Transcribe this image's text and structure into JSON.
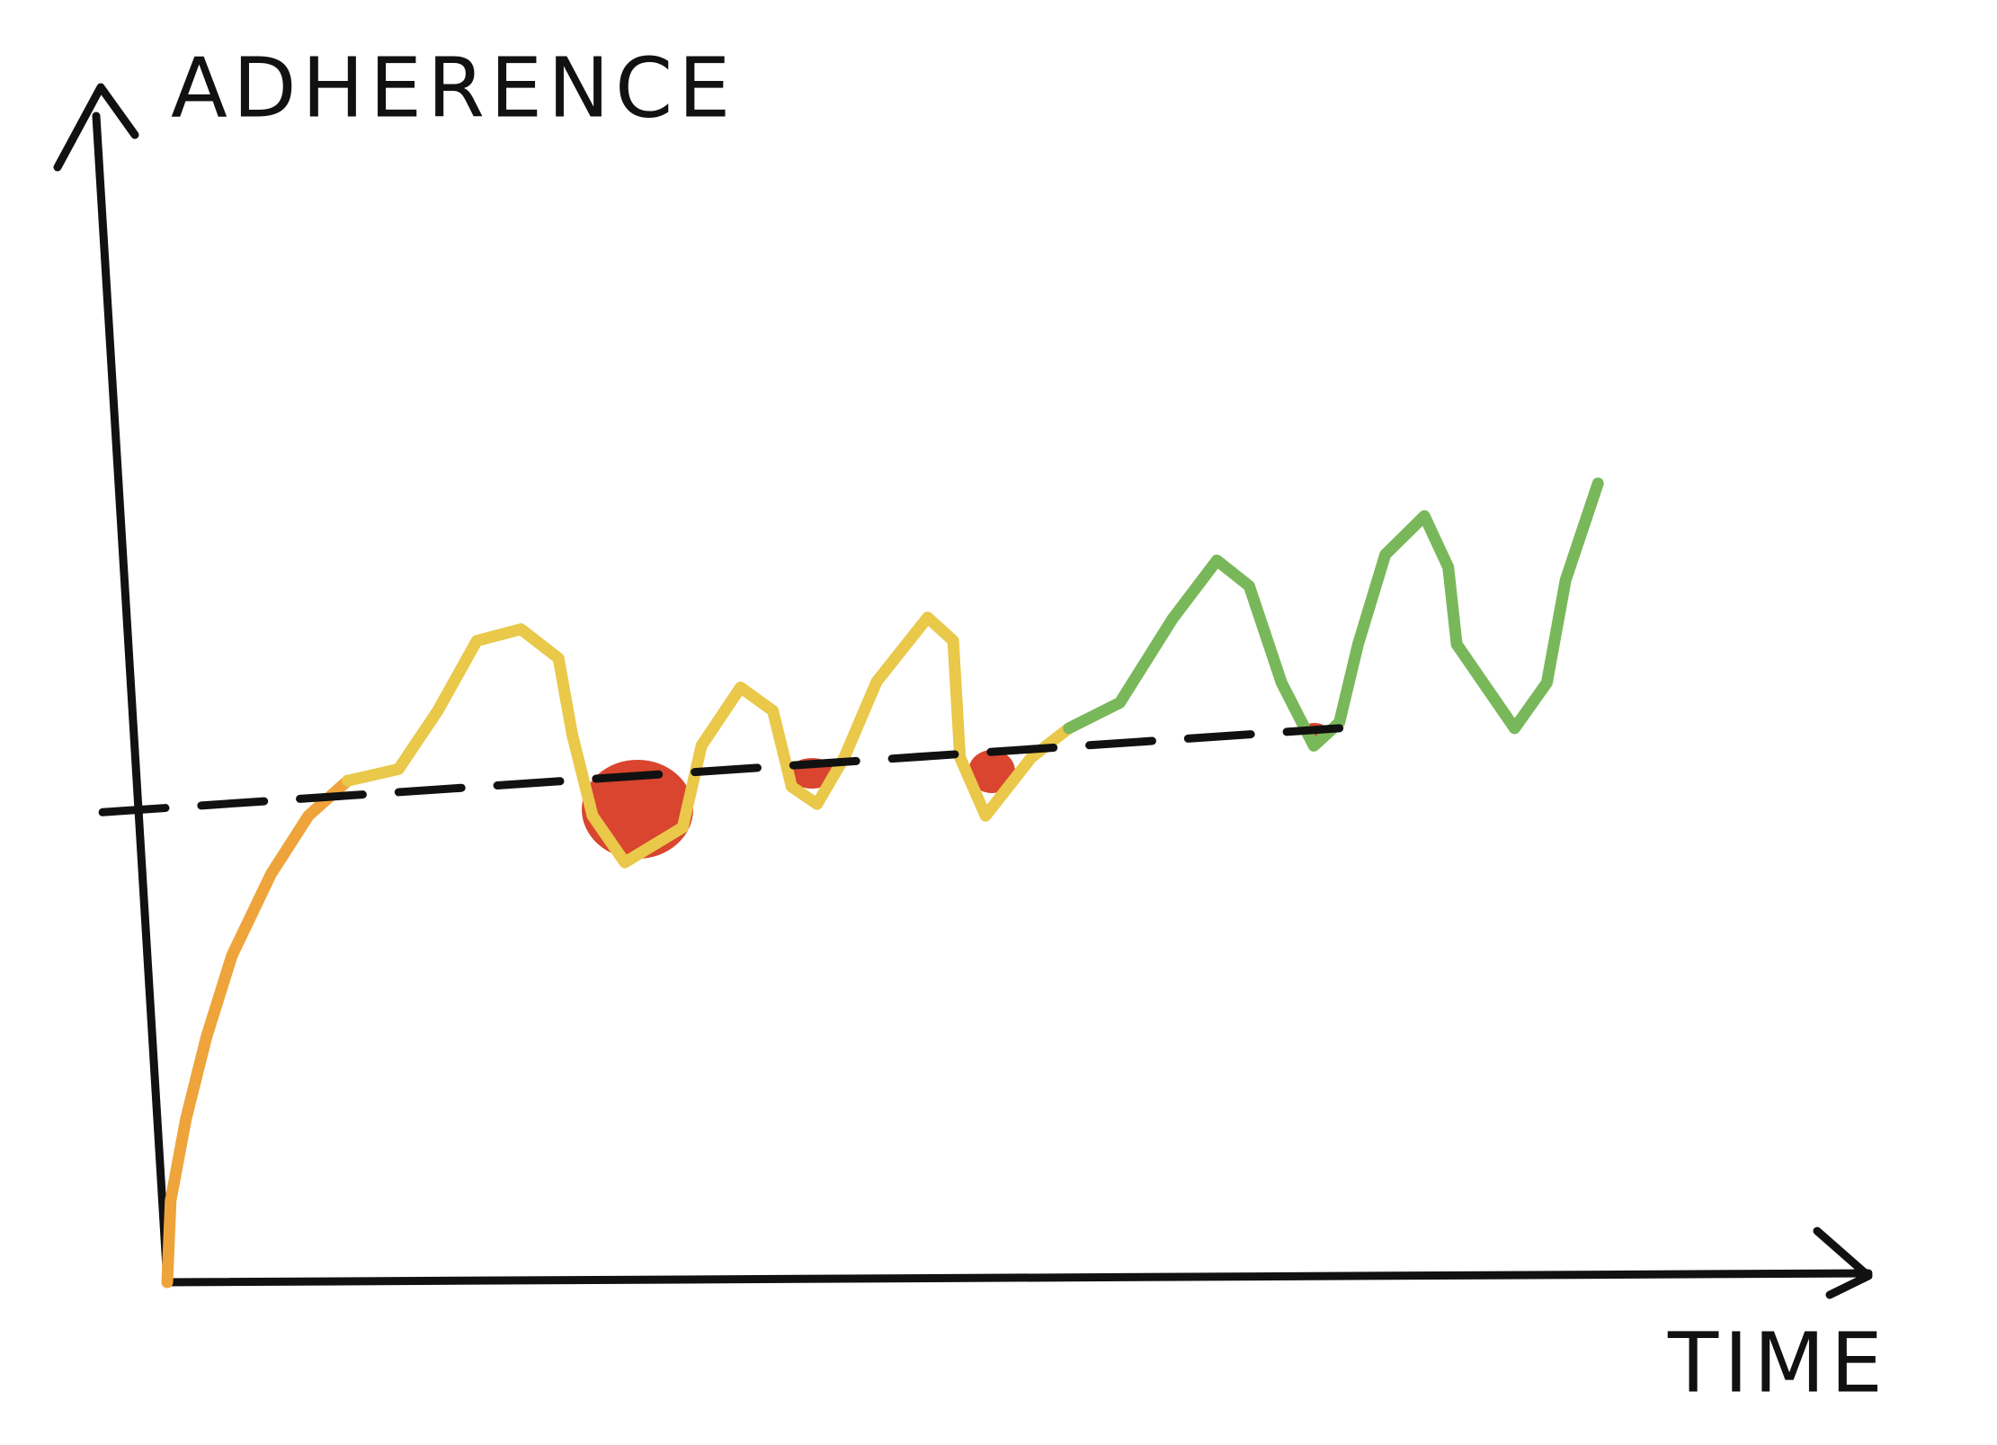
{
  "chart_data": {
    "type": "line",
    "y_label": "ADHERENCE",
    "x_label": "TIME",
    "xlim": [
      0,
      100
    ],
    "ylim": [
      0,
      100
    ],
    "grid": false,
    "series": [
      {
        "color": "#eea43a",
        "x": [
          0,
          0.2,
          1.1,
          2.3,
          3.8,
          6.1,
          8.3,
          10.6
        ],
        "values": [
          0,
          7,
          14,
          21,
          28,
          35,
          40,
          43
        ]
      },
      {
        "color": "#e9c84a",
        "x": [
          10.6,
          13.6,
          15.9,
          18.2,
          20.8,
          23,
          23.8,
          25,
          26.9,
          30.3,
          31.4,
          33.7,
          35.6,
          36.7,
          38.2,
          39.8,
          41.7,
          44.7,
          46.2,
          46.6,
          48.1,
          50.8,
          53
        ],
        "values": [
          43,
          44,
          49,
          55,
          56,
          53.5,
          47,
          40,
          36,
          39,
          46,
          51,
          49,
          42.5,
          41,
          45,
          51.5,
          57,
          55,
          45,
          40,
          45,
          47.5
        ]
      },
      {
        "color": "#79b85a",
        "x": [
          53,
          56,
          59.1,
          61.7,
          63.6,
          65.5,
          67.4,
          68.9,
          70,
          71.6,
          73.9,
          75.3,
          75.8,
          79.2,
          81.1,
          82.2,
          84.1
        ],
        "values": [
          47.5,
          49.7,
          56.9,
          61.9,
          59.7,
          51.4,
          46,
          48,
          54.7,
          62.4,
          65.7,
          61.3,
          54.7,
          47.5,
          51.4,
          60.2,
          68.5
        ]
      }
    ],
    "reference_line": {
      "color": "#111111",
      "x": [
        -3.8,
        68.9
      ],
      "values": [
        40.3,
        47.5
      ]
    }
  }
}
